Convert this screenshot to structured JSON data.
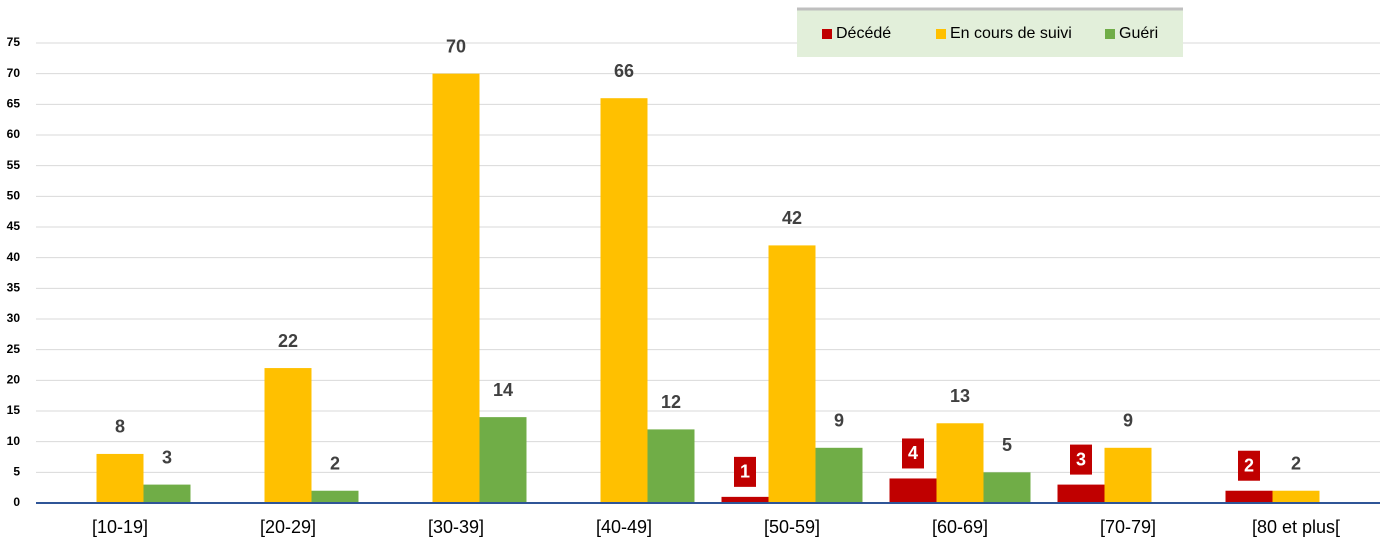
{
  "chart_data": {
    "type": "bar",
    "categories": [
      "[10-19]",
      "[20-29]",
      "[30-39]",
      "[40-49]",
      "[50-59]",
      "[60-69]",
      "[70-79]",
      "[80 et plus["
    ],
    "series": [
      {
        "name": "Décédé",
        "color": "#c00000",
        "values": [
          null,
          null,
          null,
          null,
          1,
          4,
          3,
          2
        ]
      },
      {
        "name": "En cours de suivi",
        "color": "#ffc000",
        "values": [
          8,
          22,
          70,
          66,
          42,
          13,
          9,
          2
        ]
      },
      {
        "name": "Guéri",
        "color": "#70ad47",
        "values": [
          3,
          2,
          14,
          12,
          9,
          5,
          null,
          null
        ]
      }
    ],
    "ylim": [
      0,
      75
    ],
    "yticks": [
      0,
      5,
      10,
      15,
      20,
      25,
      30,
      35,
      40,
      45,
      50,
      55,
      60,
      65,
      70,
      75
    ],
    "grid": true,
    "legend": "top"
  }
}
